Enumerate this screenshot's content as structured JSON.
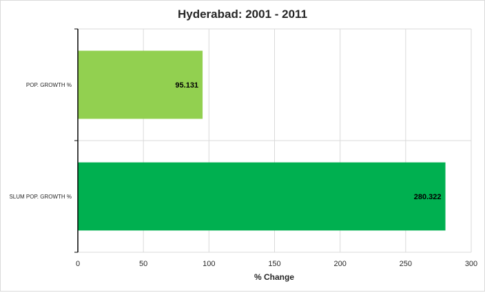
{
  "chart_data": {
    "type": "bar",
    "orientation": "horizontal",
    "title": "Hyderabad: 2001 - 2011",
    "xlabel": "% Change",
    "ylabel": "",
    "categories": [
      "POP. GROWTH %",
      "SLUM POP. GROWTH %"
    ],
    "values": [
      95.131,
      280.322
    ],
    "data_labels": [
      "95.131",
      "280.322"
    ],
    "xlim": [
      0,
      300
    ],
    "xticks": [
      0,
      50,
      100,
      150,
      200,
      250,
      300
    ],
    "grid": true,
    "legend": "none",
    "colors": [
      "#92d050",
      "#00b050"
    ],
    "gridline_color": "#d9d9d9"
  }
}
